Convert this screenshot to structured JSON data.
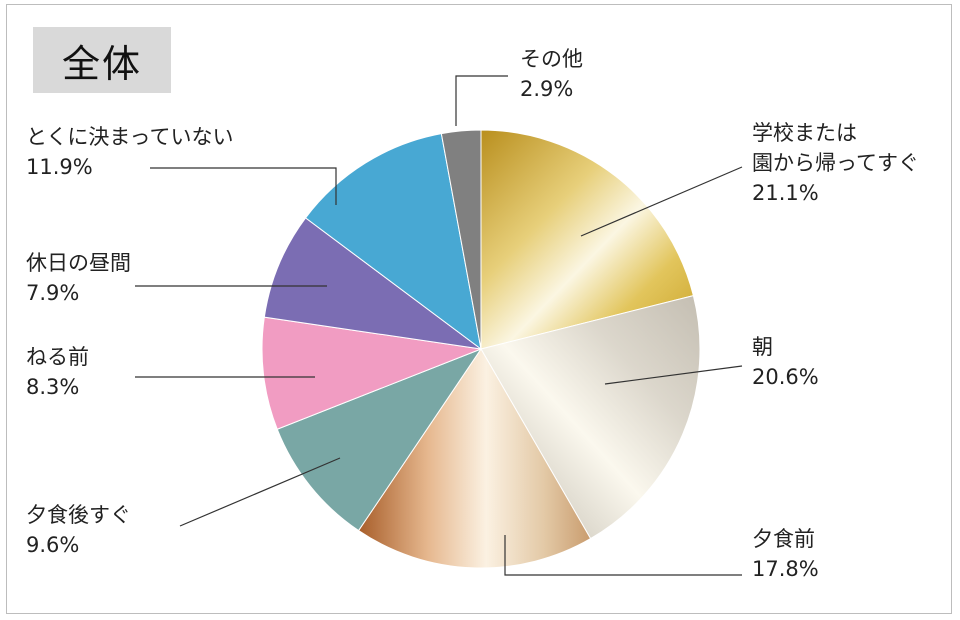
{
  "title": "全体",
  "chart_data": {
    "type": "pie",
    "title": "全体",
    "start_angle_deg": 0,
    "direction": "clockwise",
    "slices": [
      {
        "label_lines": [
          "学校または",
          "園から帰ってすぐ"
        ],
        "value": 21.1,
        "value_text": "21.1%",
        "color": "#d4b44a",
        "fill": "gold"
      },
      {
        "label_lines": [
          "朝"
        ],
        "value": 20.6,
        "value_text": "20.6%",
        "color": "#dedad0",
        "fill": "silver"
      },
      {
        "label_lines": [
          "夕食前"
        ],
        "value": 17.8,
        "value_text": "17.8%",
        "color": "#c98e62",
        "fill": "bronze"
      },
      {
        "label_lines": [
          "夕食後すぐ"
        ],
        "value": 9.6,
        "value_text": "9.6%",
        "color": "#79a7a5",
        "fill": "solid"
      },
      {
        "label_lines": [
          "ねる前"
        ],
        "value": 8.3,
        "value_text": "8.3%",
        "color": "#f19cc2",
        "fill": "solid"
      },
      {
        "label_lines": [
          "休日の昼間"
        ],
        "value": 7.9,
        "value_text": "7.9%",
        "color": "#7b6db3",
        "fill": "solid"
      },
      {
        "label_lines": [
          "とくに決まっていない"
        ],
        "value": 11.9,
        "value_text": "11.9%",
        "color": "#48a8d3",
        "fill": "solid"
      },
      {
        "label_lines": [
          "その他"
        ],
        "value": 2.9,
        "value_text": "2.9%",
        "color": "#808080",
        "fill": "solid"
      }
    ]
  }
}
